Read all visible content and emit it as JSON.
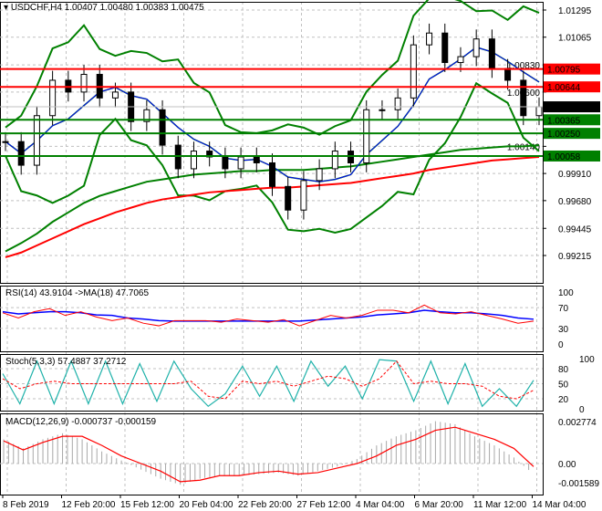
{
  "header": {
    "symbol": "USDCHF,H4",
    "ohlc": "1.00407 1.00480 1.00383 1.00475"
  },
  "colors": {
    "bull": "#000000",
    "bear": "#000000",
    "red": "#ff0000",
    "green": "#008000",
    "blue": "#0000ff",
    "teal": "#20b2aa",
    "grid": "#c0c0c0"
  },
  "chart_data": [
    {
      "type": "line",
      "title": "USDCHF,H4",
      "ylim": [
        0.99215,
        1.01295
      ],
      "yticks": [
        "1.01295",
        "1.01065",
        "1.00830",
        "1.00600",
        "1.00140",
        "0.99910",
        "0.99680",
        "0.99445",
        "0.99215"
      ],
      "closes": [
        1.0018,
        0.9998,
        1.004,
        1.007,
        1.006,
        1.0075,
        1.0055,
        1.006,
        1.0035,
        1.0045,
        1.0015,
        0.9995,
        1.001,
        1.0005,
        0.9995,
        1.0005,
        1.0,
        0.998,
        0.996,
        0.9985,
        0.9995,
        1.001,
        1.0,
        1.0045,
        1.0045,
        1.0055,
        1.01,
        1.011,
        1.0085,
        1.009,
        1.0105,
        1.008,
        1.007,
        1.004,
        1.00475
      ],
      "ma_long_green": [
        0.9925,
        0.9932,
        0.994,
        0.995,
        0.9958,
        0.9966,
        0.9972,
        0.9976,
        0.998,
        0.9984,
        0.9986,
        0.9988,
        0.999,
        0.9991,
        0.9992,
        0.9993,
        0.9993,
        0.9994,
        0.9994,
        0.9994,
        0.9995,
        0.9996,
        0.9997,
        0.9999,
        1.0001,
        1.0003,
        1.0005,
        1.0007,
        1.0009,
        1.0011,
        1.0012,
        1.0013,
        1.0014,
        1.0014,
        1.0015
      ],
      "ma_long_red": [
        0.992,
        0.9924,
        0.993,
        0.9936,
        0.9942,
        0.9948,
        0.9953,
        0.9958,
        0.9962,
        0.9966,
        0.9969,
        0.9971,
        0.9973,
        0.9975,
        0.9976,
        0.9977,
        0.9978,
        0.9979,
        0.9979,
        0.998,
        0.9981,
        0.9982,
        0.9983,
        0.9985,
        0.9987,
        0.9989,
        0.9991,
        0.9994,
        0.9996,
        0.9998,
        1.0,
        1.0002,
        1.0003,
        1.0004,
        1.0005
      ],
      "levels": [
        {
          "value": "1.00795",
          "color": "#ff0000"
        },
        {
          "value": "1.00644",
          "color": "#ff0000"
        },
        {
          "value": "1.00475",
          "color": "#000000",
          "current": true
        },
        {
          "value": "1.00365",
          "color": "#008000"
        },
        {
          "value": "1.00250",
          "color": "#008000"
        },
        {
          "value": "1.00058",
          "color": "#008000"
        }
      ]
    },
    {
      "type": "line",
      "title": "RSI(14) 43.9104  ->MA(18) 47.7065",
      "ylim": [
        0,
        100
      ],
      "yticks": [
        "100",
        "70",
        "30",
        "0"
      ],
      "rsi": [
        60,
        50,
        62,
        68,
        55,
        62,
        52,
        45,
        50,
        40,
        35,
        45,
        45,
        45,
        42,
        48,
        45,
        42,
        47,
        35,
        45,
        55,
        50,
        55,
        65,
        65,
        60,
        75,
        60,
        58,
        62,
        55,
        48,
        40,
        44
      ],
      "ma": [
        62,
        58,
        60,
        62,
        62,
        60,
        56,
        55,
        50,
        48,
        45,
        44,
        44,
        44,
        44,
        44,
        44,
        44,
        44,
        44,
        46,
        48,
        50,
        52,
        56,
        58,
        60,
        65,
        62,
        60,
        60,
        58,
        55,
        50,
        47.7
      ]
    },
    {
      "type": "line",
      "title": "Stoch(5,3,3) 57.4887 37.2712",
      "ylim": [
        0,
        100
      ],
      "yticks": [
        "100",
        "80",
        "50",
        "20",
        "0"
      ],
      "main": [
        70,
        10,
        95,
        10,
        95,
        10,
        95,
        10,
        90,
        15,
        95,
        40,
        5,
        30,
        85,
        25,
        85,
        15,
        95,
        45,
        85,
        20,
        98,
        95,
        15,
        95,
        10,
        90,
        5,
        40,
        5,
        57
      ],
      "signal": [
        60,
        40,
        50,
        55,
        50,
        50,
        50,
        50,
        50,
        50,
        50,
        55,
        25,
        20,
        55,
        50,
        55,
        45,
        55,
        65,
        60,
        45,
        60,
        95,
        50,
        55,
        50,
        50,
        45,
        25,
        20,
        37
      ]
    },
    {
      "type": "bar",
      "title": "MACD(12,26,9) -0.000737 -0.000159",
      "ylim": [
        -0.001589,
        0.002774
      ],
      "yticks": [
        "0.002774",
        "0.00",
        "-0.001589"
      ],
      "histogram": [
        0.0016,
        0.001,
        0.0016,
        0.002,
        0.0016,
        0.0008,
        0.0002,
        -0.0004,
        -0.001,
        -0.0014,
        -0.001,
        -0.0008,
        -0.0008,
        -0.0007,
        -0.0006,
        -0.0008,
        -0.0005,
        -0.0002,
        0.0003,
        0.0012,
        0.0018,
        0.0022,
        0.0028,
        0.0026,
        0.0018,
        0.0012,
        0.0004,
        -0.0007
      ],
      "signal": [
        0.0015,
        0.0009,
        0.0014,
        0.0018,
        0.0018,
        0.0012,
        0.0005,
        0.0,
        -0.0005,
        -0.0012,
        -0.0011,
        -0.0008,
        -0.0008,
        -0.0006,
        -0.0005,
        -0.0007,
        -0.0006,
        -0.0003,
        0.0,
        0.0005,
        0.0012,
        0.0016,
        0.0022,
        0.0024,
        0.002,
        0.0016,
        0.001,
        -0.0002
      ]
    },
    {
      "type": "axis",
      "xticks": [
        "8 Feb 2019",
        "12 Feb 20:00",
        "15 Feb 12:00",
        "20 Feb 04:00",
        "22 Feb 20:00",
        "27 Feb 12:00",
        "4 Mar 04:00",
        "6 Mar 20:00",
        "11 Mar 12:00",
        "14 Mar 04:00"
      ]
    }
  ]
}
